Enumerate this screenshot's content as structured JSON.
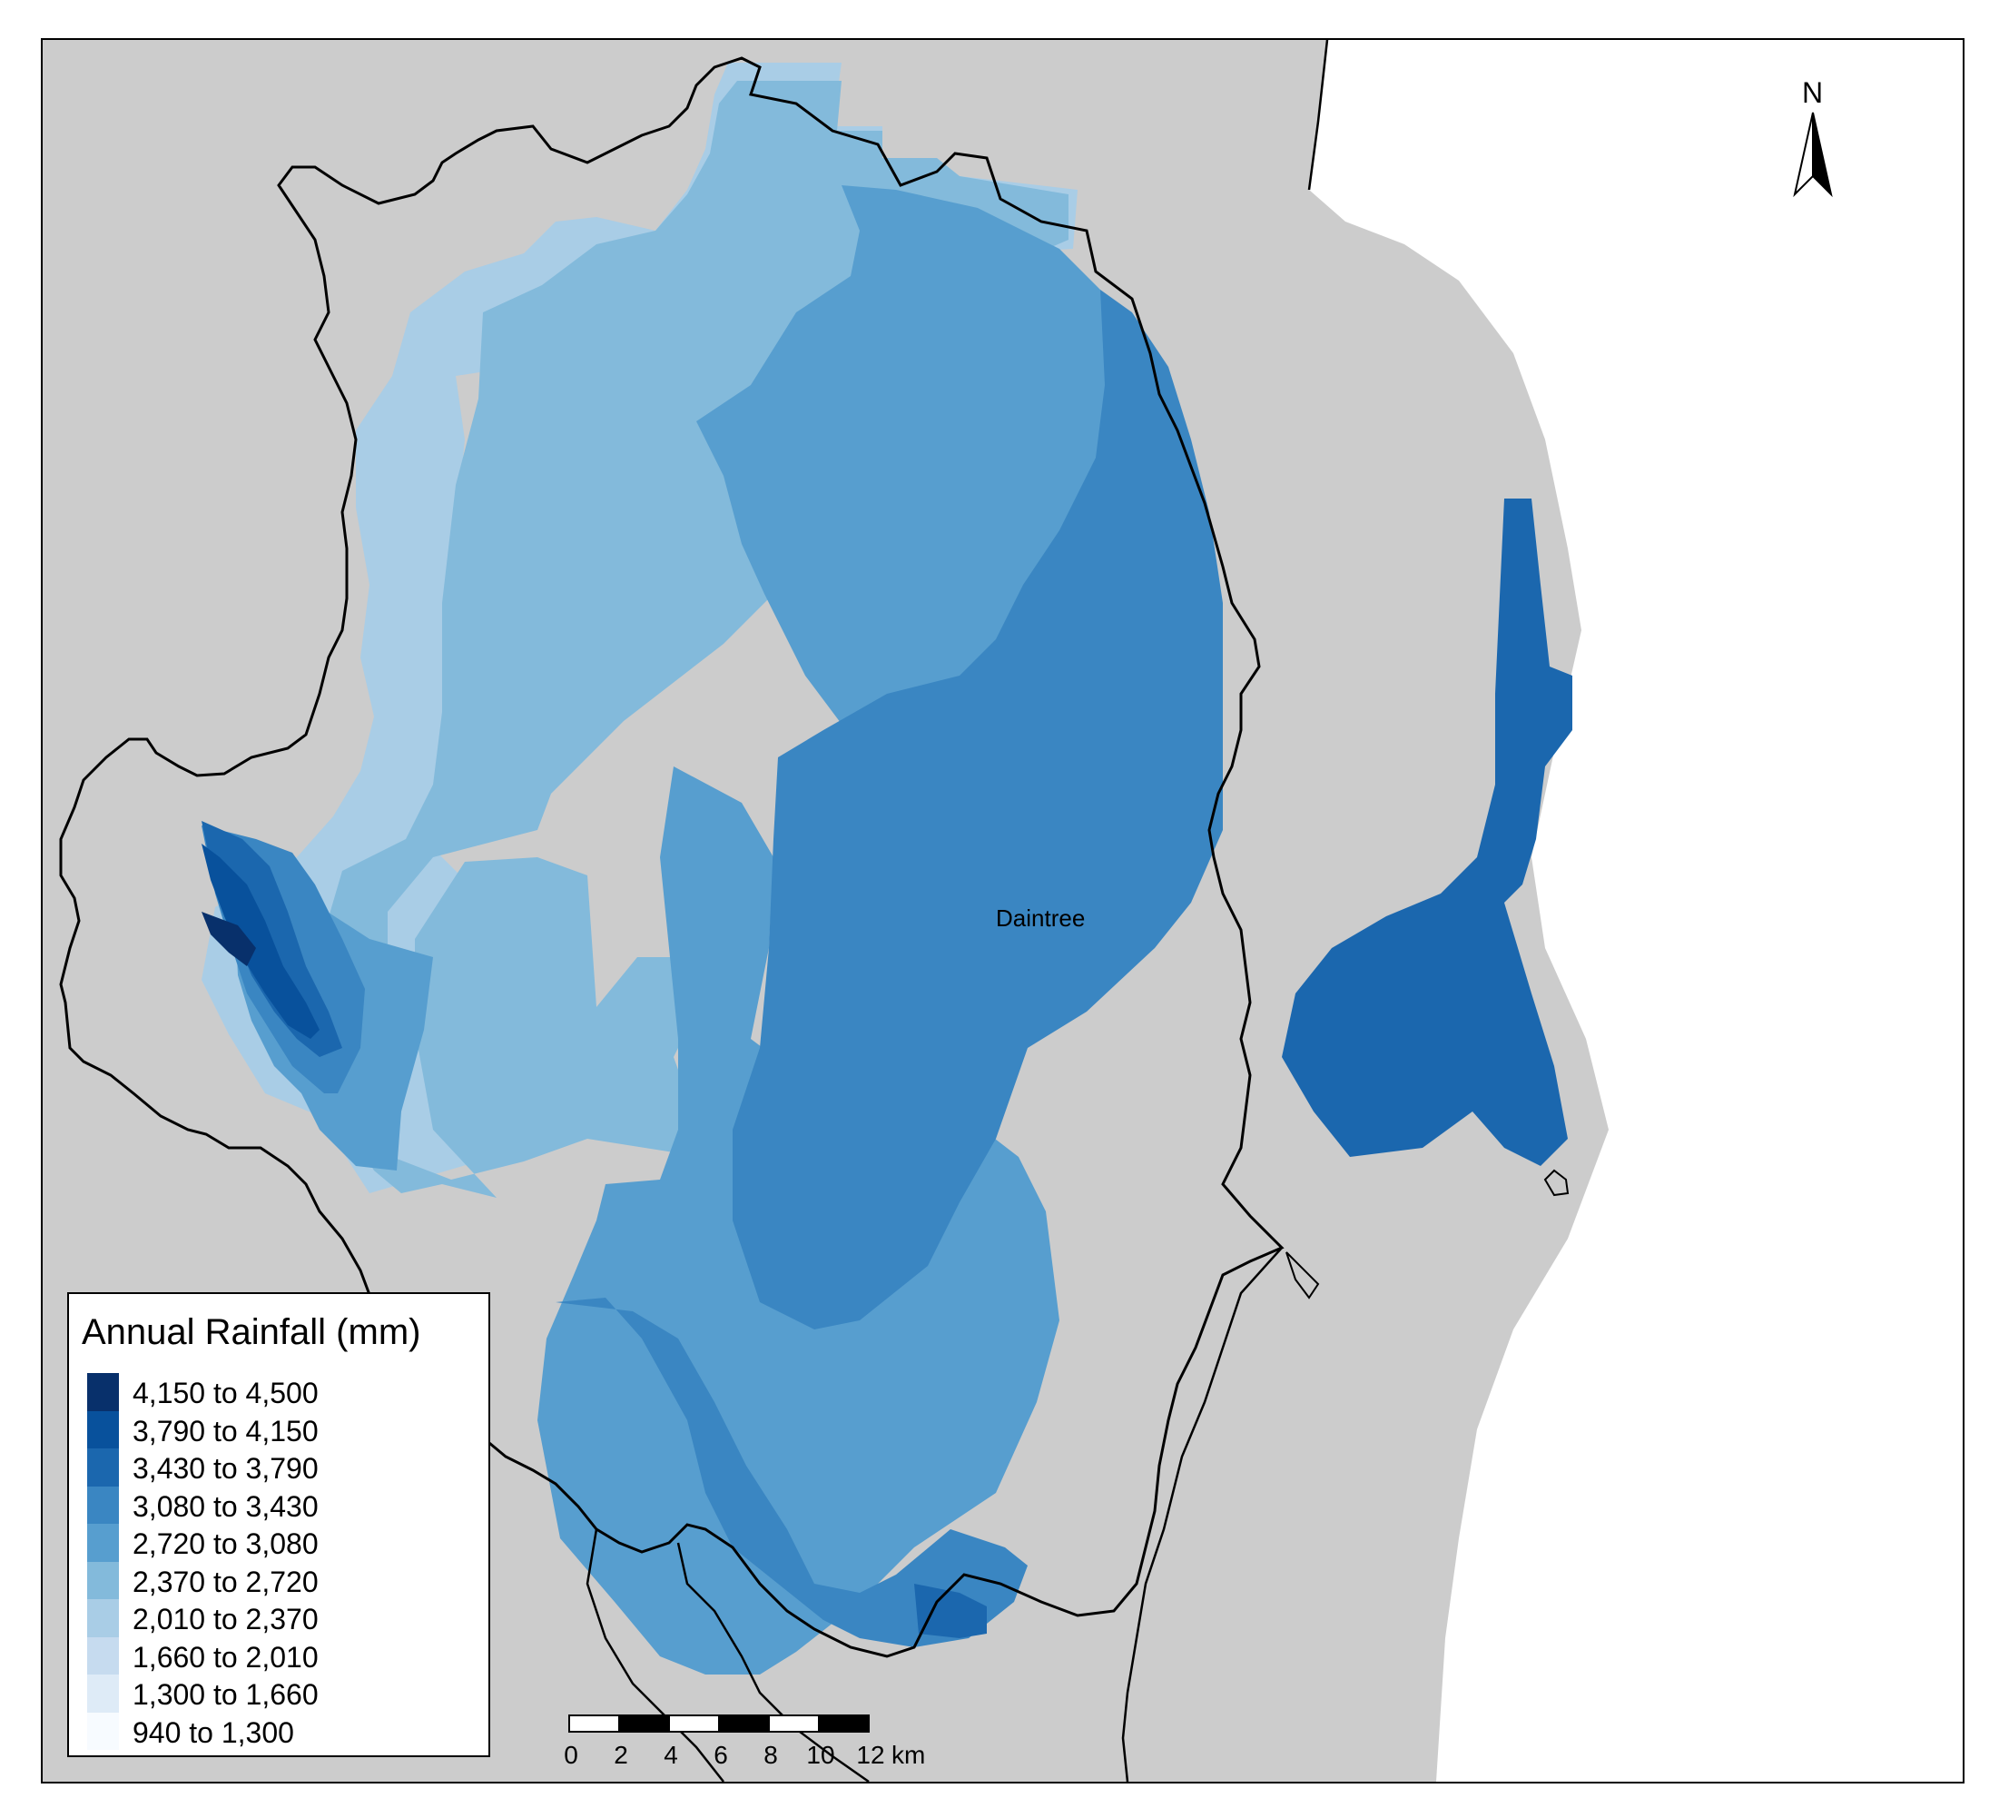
{
  "legend": {
    "title": "Annual Rainfall (mm)",
    "classes": [
      {
        "label": "4,150 to 4,500",
        "color": "#08306b"
      },
      {
        "label": "3,790 to 4,150",
        "color": "#08519c"
      },
      {
        "label": "3,430 to 3,790",
        "color": "#1b67ae"
      },
      {
        "label": "3,080 to 3,430",
        "color": "#3a86c2"
      },
      {
        "label": "2,720 to 3,080",
        "color": "#579ecf"
      },
      {
        "label": "2,370 to 2,720",
        "color": "#83badb"
      },
      {
        "label": "2,010 to 2,370",
        "color": "#a9cde6"
      },
      {
        "label": "1,660 to 2,010",
        "color": "#c6dbef"
      },
      {
        "label": "1,300 to 1,660",
        "color": "#deebf7"
      },
      {
        "label": "940 to 1,300",
        "color": "#f7fbff"
      }
    ]
  },
  "place": {
    "name": "Daintree"
  },
  "north_arrow": {
    "label": "N"
  },
  "scale_bar": {
    "ticks": [
      "0",
      "2",
      "4",
      "6",
      "8",
      "10",
      "12"
    ],
    "unit": "km"
  },
  "colors": {
    "land": "#cccccc",
    "sea": "#ffffff",
    "boundary": "#000000"
  }
}
